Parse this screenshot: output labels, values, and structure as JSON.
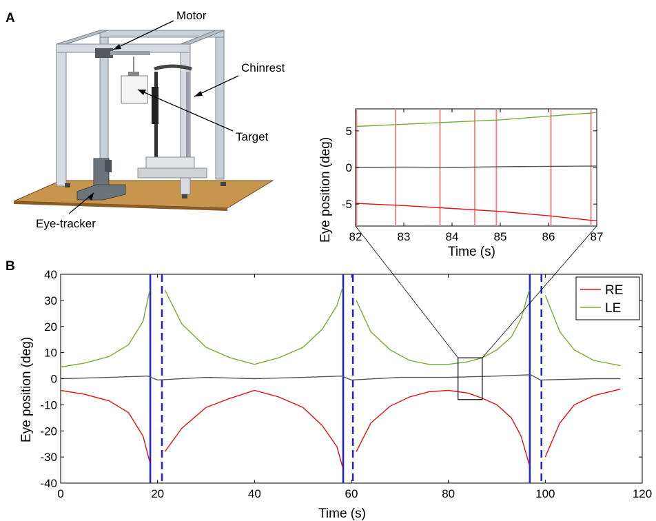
{
  "panel_a": {
    "letter": "A",
    "labels": {
      "motor": "Motor",
      "chinrest": "Chinrest",
      "target": "Target",
      "eye_tracker": "Eye-tracker"
    },
    "colors": {
      "frame": "#c9cfd6",
      "base": "#c8954f",
      "tracker": "#6d737a"
    }
  },
  "panel_b": {
    "letter": "B"
  },
  "chart_data": [
    {
      "type": "line",
      "xlabel": "Time (s)",
      "ylabel": "Eye position (deg)",
      "xlim": [
        0,
        120
      ],
      "ylim": [
        -40,
        40
      ],
      "xticks": [
        0,
        20,
        40,
        60,
        80,
        100,
        120
      ],
      "yticks": [
        -40,
        -30,
        -20,
        -10,
        0,
        10,
        20,
        30,
        40
      ],
      "legend": "top-right",
      "grid": false,
      "solid_vlines_x": [
        18.5,
        58.3,
        96.8
      ],
      "dashed_vlines_x": [
        20.9,
        60.3,
        99.2
      ],
      "zoom_box": {
        "x": [
          82,
          87
        ],
        "y": [
          -8,
          8
        ]
      },
      "series": [
        {
          "name": "LE",
          "color": "#77ac30",
          "x": [
            0,
            5,
            10,
            14,
            17,
            18.4,
            20.5,
            21.5,
            25,
            30,
            35,
            40,
            45,
            50,
            54,
            57,
            58.2,
            60.2,
            61,
            64,
            68,
            72,
            76,
            80,
            84,
            87,
            90,
            93,
            95,
            96.7,
            98.9,
            100,
            103,
            106,
            110,
            115.5
          ],
          "y": [
            4.5,
            6,
            8.5,
            13,
            22,
            34,
            null,
            34,
            21,
            12,
            8,
            5.5,
            8,
            12,
            19,
            28,
            35,
            null,
            30,
            18,
            11,
            7,
            5.5,
            5.5,
            6.5,
            8,
            11,
            16,
            23,
            34,
            null,
            32,
            18,
            11,
            7,
            5
          ]
        },
        {
          "name": "RE",
          "color": "#e01010",
          "x": [
            0,
            5,
            10,
            14,
            17,
            18.4,
            20.5,
            21.5,
            25,
            30,
            35,
            40,
            45,
            50,
            54,
            57,
            58.2,
            60.2,
            61,
            64,
            68,
            72,
            76,
            80,
            84,
            87,
            90,
            93,
            95,
            96.7,
            98.9,
            100,
            103,
            106,
            110,
            115.5
          ],
          "y": [
            -4.5,
            -6,
            -8.5,
            -13,
            -22,
            -32,
            null,
            -28,
            -19,
            -11,
            -7.5,
            -4.5,
            -7,
            -11,
            -18,
            -26,
            -34,
            null,
            -28,
            -17,
            -10.5,
            -7,
            -5,
            -4.5,
            -5.5,
            -7.5,
            -10,
            -15,
            -22,
            -33,
            null,
            -30,
            -17,
            -10,
            -6.5,
            -4
          ]
        },
        {
          "name": "",
          "color": "#555555",
          "x": [
            0,
            10,
            18,
            20,
            30,
            40,
            50,
            58,
            60,
            70,
            80,
            90,
            97,
            99,
            110,
            115.5
          ],
          "y": [
            0,
            0.5,
            1,
            -0.5,
            0.5,
            0,
            0.5,
            1,
            -0.5,
            0.5,
            0.5,
            1,
            1.5,
            -0.5,
            0,
            0
          ]
        }
      ]
    },
    {
      "type": "line",
      "xlabel": "Time (s)",
      "ylabel": "Eye position (deg)",
      "xlim": [
        82,
        87
      ],
      "ylim": [
        -8,
        8
      ],
      "xticks": [
        82,
        83,
        84,
        85,
        86,
        87
      ],
      "yticks": [
        -5,
        0,
        5
      ],
      "grid": false,
      "event_lines_x": [
        82.02,
        82.83,
        83.75,
        84.47,
        84.92,
        86.05,
        86.88
      ],
      "event_line_color": "#e88a8a",
      "series": [
        {
          "name": "LE",
          "color": "#77ac30",
          "x": [
            82,
            83,
            84,
            85,
            86,
            87
          ],
          "y": [
            5.6,
            5.9,
            6.2,
            6.5,
            7.0,
            7.5
          ]
        },
        {
          "name": "RE",
          "color": "#e01010",
          "x": [
            82,
            83,
            84,
            85,
            86,
            87
          ],
          "y": [
            -4.9,
            -5.2,
            -5.6,
            -6.0,
            -6.6,
            -7.3
          ]
        },
        {
          "name": "",
          "color": "#555555",
          "x": [
            82,
            83,
            84,
            85,
            86,
            87
          ],
          "y": [
            0,
            0.05,
            0,
            0.1,
            0.15,
            0.2
          ]
        }
      ]
    }
  ]
}
